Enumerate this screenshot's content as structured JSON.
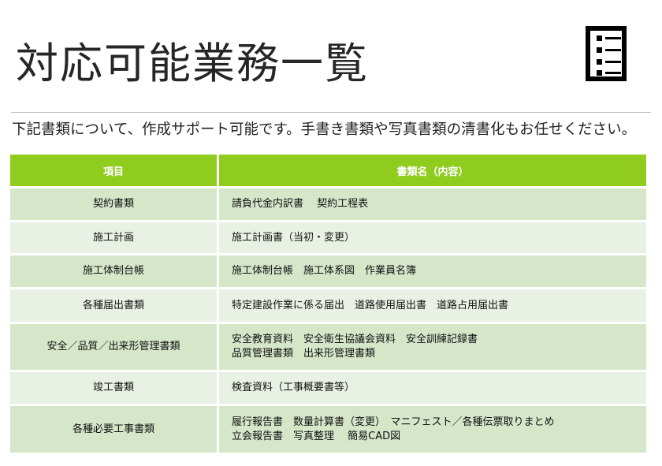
{
  "title": "対応可能業務一覧",
  "icon": "document-list-icon",
  "subtitle": "下記書類について、作成サポート可能です。手書き書類や写真書類の清書化もお任せください。",
  "table": {
    "headers": [
      "項目",
      "書類名（内容）"
    ],
    "rows": [
      {
        "item": "契約書類",
        "docs": [
          "請負代金内訳書　 契約工程表"
        ]
      },
      {
        "item": "施工計画",
        "docs": [
          "施工計画書（当初・変更）"
        ]
      },
      {
        "item": "施工体制台帳",
        "docs": [
          "施工体制台帳　施工体系図　作業員名簿"
        ]
      },
      {
        "item": "各種届出書類",
        "docs": [
          "特定建設作業に係る届出　道路使用届出書　道路占用届出書"
        ]
      },
      {
        "item": "安全／品質／出来形管理書類",
        "docs": [
          "安全教育資料　安全衛生協議会資料　安全訓練記録書",
          "品質管理書類　出来形管理書類"
        ]
      },
      {
        "item": "竣工書類",
        "docs": [
          "検査資料（工事概要書等）"
        ]
      },
      {
        "item": "各種必要工事書類",
        "docs": [
          "履行報告書　数量計算書（変更）　マニフェスト／各種伝票取りまとめ",
          "立会報告書　写真整理　 簡易CAD図"
        ]
      }
    ]
  },
  "colors": {
    "header": "#8fcc1e",
    "row_dark": "#d5e6c9",
    "row_light": "#e9f1e4"
  }
}
